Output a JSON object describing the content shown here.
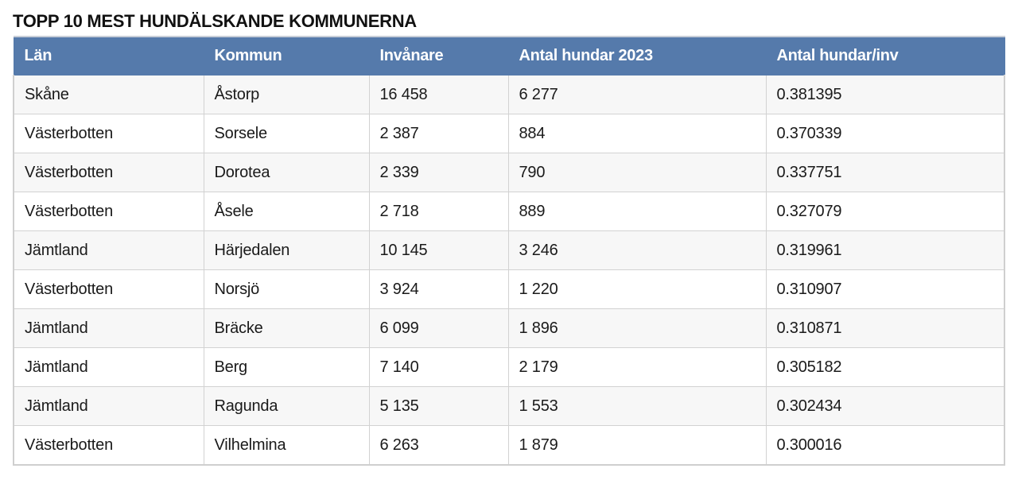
{
  "title": "TOPP 10 MEST HUNDÄLSKANDE KOMMUNERNA",
  "colors": {
    "header_bg": "#557aab",
    "header_text": "#ffffff",
    "row_alt_bg": "#f7f7f7",
    "border": "#d2d2d2"
  },
  "table": {
    "headers": [
      "Län",
      "Kommun",
      "Invånare",
      "Antal hundar 2023",
      "Antal hundar/inv"
    ],
    "rows": [
      [
        "Skåne",
        "Åstorp",
        "16 458",
        "6 277",
        "0.381395"
      ],
      [
        "Västerbotten",
        "Sorsele",
        "2 387",
        "884",
        "0.370339"
      ],
      [
        "Västerbotten",
        "Dorotea",
        "2 339",
        "790",
        "0.337751"
      ],
      [
        "Västerbotten",
        "Åsele",
        "2 718",
        "889",
        "0.327079"
      ],
      [
        "Jämtland",
        "Härjedalen",
        "10 145",
        "3 246",
        "0.319961"
      ],
      [
        "Västerbotten",
        "Norsjö",
        "3 924",
        "1 220",
        "0.310907"
      ],
      [
        "Jämtland",
        "Bräcke",
        "6 099",
        "1 896",
        "0.310871"
      ],
      [
        "Jämtland",
        "Berg",
        "7 140",
        "2 179",
        "0.305182"
      ],
      [
        "Jämtland",
        "Ragunda",
        "5 135",
        "1 553",
        "0.302434"
      ],
      [
        "Västerbotten",
        "Vilhelmina",
        "6 263",
        "1 879",
        "0.300016"
      ]
    ]
  }
}
